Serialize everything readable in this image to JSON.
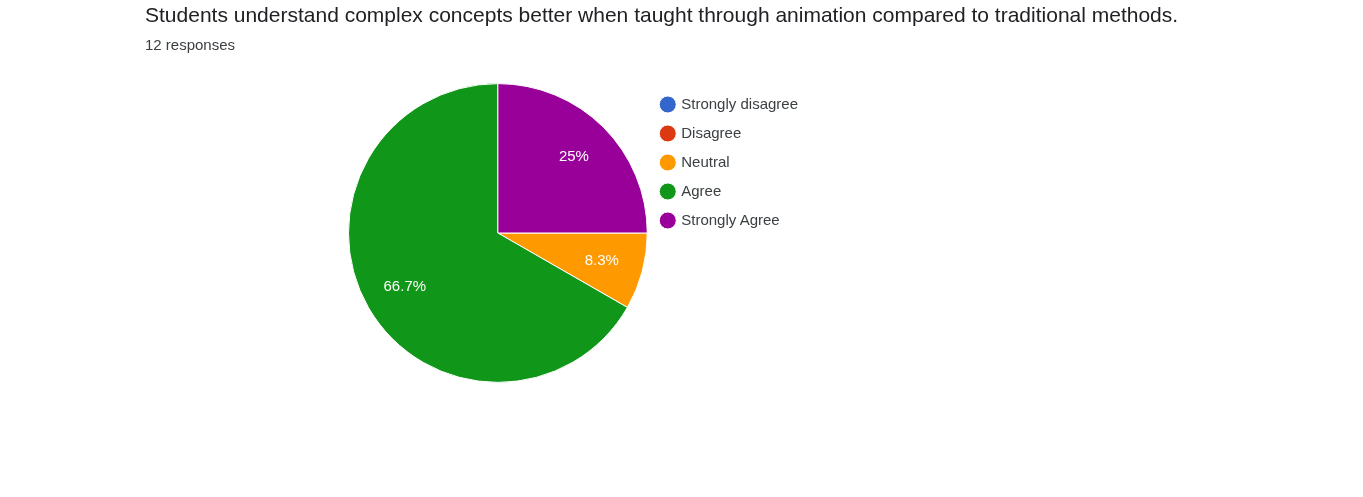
{
  "chart_data": {
    "type": "pie",
    "title": "Students understand complex concepts better when taught through animation compared to traditional methods.",
    "subtitle": "12 responses",
    "categories": [
      "Strongly disagree",
      "Disagree",
      "Neutral",
      "Agree",
      "Strongly Agree"
    ],
    "values": [
      0,
      0,
      8.3,
      66.7,
      25
    ],
    "colors": [
      "#3366cc",
      "#dc3912",
      "#ff9900",
      "#109618",
      "#990099"
    ],
    "value_labels": [
      null,
      null,
      "8.3%",
      "66.7%",
      "25%"
    ],
    "legend": "right"
  }
}
